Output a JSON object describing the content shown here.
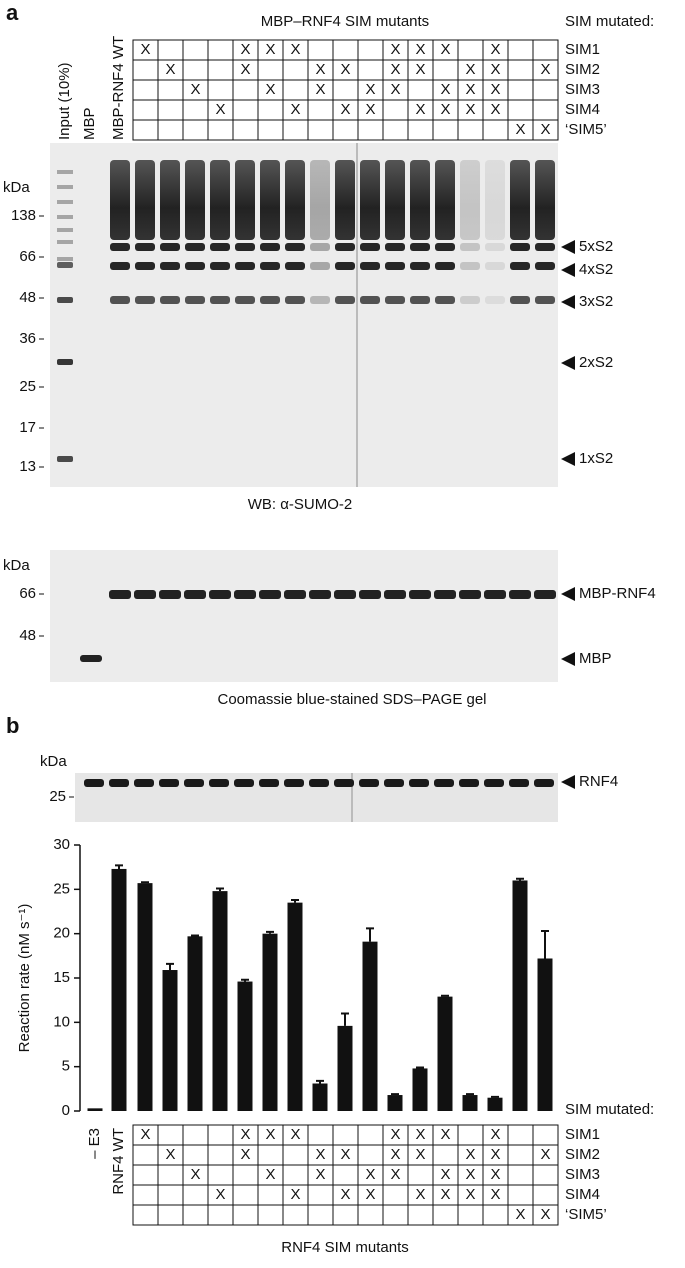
{
  "panel_a": {
    "label": "a",
    "header": "MBP–RNF4 SIM mutants",
    "sim_heading": "SIM mutated:",
    "lanes": [
      "Input (10%)",
      "MBP",
      "MBP-RNF4 WT"
    ],
    "wb": {
      "unit": "kDa",
      "markers": [
        "138",
        "66",
        "48",
        "36",
        "25",
        "17",
        "13"
      ],
      "bands": [
        "5xS2",
        "4xS2",
        "3xS2",
        "2xS2",
        "1xS2"
      ],
      "caption": "WB: α-SUMO-2"
    },
    "coomassie": {
      "unit": "kDa",
      "markers": [
        "66",
        "48"
      ],
      "bands": [
        "MBP-RNF4",
        "MBP"
      ],
      "caption": "Coomassie blue-stained SDS–PAGE gel"
    }
  },
  "sim_table": {
    "rows": [
      {
        "label": "SIM1",
        "cells": [
          "X",
          null,
          null,
          null,
          "X",
          "X",
          "X",
          null,
          null,
          null,
          "X",
          "X",
          "X",
          null,
          "X",
          null,
          null
        ]
      },
      {
        "label": "SIM2",
        "cells": [
          null,
          "X",
          null,
          null,
          "X",
          null,
          null,
          "X",
          "X",
          null,
          "X",
          "X",
          null,
          "X",
          "X",
          null,
          "X"
        ]
      },
      {
        "label": "SIM3",
        "cells": [
          null,
          null,
          "X",
          null,
          null,
          "X",
          null,
          "X",
          null,
          "X",
          "X",
          null,
          "X",
          "X",
          "X",
          null,
          null
        ]
      },
      {
        "label": "SIM4",
        "cells": [
          null,
          null,
          null,
          "X",
          null,
          null,
          "X",
          null,
          "X",
          "X",
          null,
          "X",
          "X",
          "X",
          "X",
          null,
          null
        ]
      },
      {
        "label": "‘SIM5’",
        "cells": [
          null,
          null,
          null,
          null,
          null,
          null,
          null,
          null,
          null,
          null,
          null,
          null,
          null,
          null,
          null,
          "X",
          "X"
        ]
      }
    ]
  },
  "panel_b": {
    "label": "b",
    "blot": {
      "unit": "kDa",
      "markers": [
        "25"
      ],
      "bands": [
        "RNF4"
      ]
    },
    "sim_heading": "SIM mutated:",
    "caption": "RNF4 SIM mutants"
  },
  "chart_data": {
    "type": "bar",
    "y_label": "Reaction rate (nM s⁻¹)",
    "categories": [
      "– E3",
      "RNF4 WT",
      null,
      null,
      null,
      null,
      null,
      null,
      null,
      null,
      null,
      null,
      null,
      null,
      null,
      null,
      null,
      null,
      null
    ],
    "values": [
      0.3,
      27.3,
      25.7,
      15.9,
      19.7,
      24.8,
      14.6,
      20.0,
      23.5,
      3.1,
      9.6,
      19.1,
      1.8,
      4.8,
      12.9,
      1.8,
      1.5,
      26.0,
      17.2
    ],
    "errors": [
      0,
      0.4,
      0.1,
      0.7,
      0.1,
      0.3,
      0.2,
      0.2,
      0.3,
      0.3,
      1.4,
      1.5,
      0.1,
      0.1,
      0.1,
      0.1,
      0.1,
      0.2,
      3.1
    ],
    "color": "#111111",
    "ylim": [
      0,
      30
    ],
    "yticks": [
      0,
      5,
      10,
      15,
      20,
      25,
      30
    ]
  }
}
